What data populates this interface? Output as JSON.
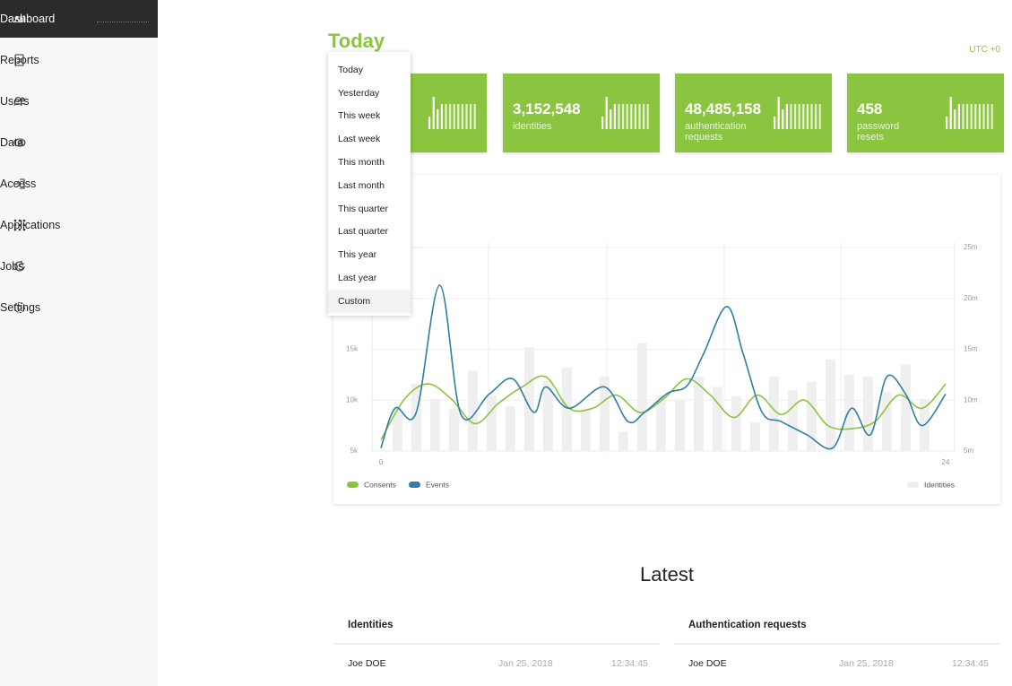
{
  "sidebar": {
    "items": [
      {
        "label": "Dashboard",
        "active": true
      },
      {
        "label": "Reports"
      },
      {
        "label": "Users"
      },
      {
        "label": "Data"
      },
      {
        "label": "Access"
      },
      {
        "label": "Applications"
      },
      {
        "label": "Jobs"
      },
      {
        "label": "Settings"
      }
    ]
  },
  "header": {
    "title": "Today",
    "timezone": "UTC +0"
  },
  "range_menu": {
    "options": [
      {
        "label": "Today"
      },
      {
        "label": "Yesterday"
      },
      {
        "label": "This week"
      },
      {
        "label": "Last week"
      },
      {
        "label": "This month"
      },
      {
        "label": "Last month"
      },
      {
        "label": "This quarter"
      },
      {
        "label": "Last quarter"
      },
      {
        "label": "This year"
      },
      {
        "label": "Last year"
      },
      {
        "label": "Custom",
        "hover": true
      }
    ]
  },
  "stats": [
    {
      "value": "3,152,548",
      "label": "identities"
    },
    {
      "value": "48,485,158",
      "label": "authentication requests"
    },
    {
      "value": "458",
      "label": "password resets"
    }
  ],
  "chart_data": {
    "type": "line",
    "xlim": [
      0,
      24
    ],
    "xticks": [
      0,
      24
    ],
    "ylim": [
      5000,
      25000
    ],
    "yticks": [
      {
        "value": 5000,
        "label": "5k"
      },
      {
        "value": 10000,
        "label": "10k"
      },
      {
        "value": 15000,
        "label": "15k"
      }
    ],
    "y2lim": [
      5000000,
      25000000
    ],
    "y2ticks": [
      {
        "value": 5000000,
        "label": "5m"
      },
      {
        "value": 10000000,
        "label": "10m"
      },
      {
        "value": 15000000,
        "label": "15m"
      },
      {
        "value": 20000000,
        "label": "20m"
      },
      {
        "value": 25000000,
        "label": "25m"
      }
    ],
    "grid": true,
    "series": [
      {
        "name": "Consents",
        "color": "#8cc43f",
        "x": [
          0,
          1,
          2,
          3,
          4,
          5,
          6,
          7,
          8,
          9,
          10,
          11,
          12,
          13,
          14,
          15,
          16,
          17,
          18,
          19,
          20,
          21,
          22,
          23,
          24
        ],
        "values": [
          6100,
          10100,
          11600,
          10100,
          7700,
          9700,
          11300,
          12300,
          9200,
          9200,
          10500,
          8800,
          10100,
          12100,
          10500,
          8300,
          10500,
          8600,
          10000,
          7500,
          7200,
          7900,
          10500,
          9200,
          11600
        ]
      },
      {
        "name": "Events",
        "color": "#2f7ea3",
        "x": [
          0,
          0.6,
          1.5,
          2.5,
          3.4,
          4.6,
          5.6,
          6.5,
          7,
          8,
          9.5,
          10.5,
          11.2,
          12.2,
          13,
          13.7,
          14.7,
          15.4,
          16.2,
          17,
          18.1,
          19.2,
          20,
          20.8,
          21.5,
          22.3,
          23,
          24
        ],
        "values": [
          5300,
          9200,
          8800,
          21300,
          8600,
          10600,
          12100,
          8800,
          11300,
          9200,
          11300,
          7900,
          8800,
          10700,
          11400,
          14500,
          19200,
          14500,
          8800,
          7900,
          6600,
          5300,
          9200,
          6600,
          12300,
          10600,
          7500,
          10600
        ]
      },
      {
        "name": "Identities",
        "color": "#efefef",
        "type": "bar",
        "axis": "y2",
        "x": [
          0.7,
          1.5,
          2.3,
          3.1,
          3.9,
          4.7,
          5.5,
          6.3,
          7.1,
          7.9,
          8.7,
          9.5,
          10.3,
          11.1,
          11.9,
          12.7,
          13.5,
          14.3,
          15.1,
          15.9,
          16.7,
          17.5,
          18.3,
          19.1,
          19.9,
          20.7,
          21.5,
          22.3,
          23.1
        ],
        "values": [
          9200000,
          11600000,
          10100000,
          9200000,
          12900000,
          10500000,
          9400000,
          15200000,
          11900000,
          13200000,
          9200000,
          12300000,
          6900000,
          15600000,
          10500000,
          10000000,
          12300000,
          11300000,
          10400000,
          7800000,
          12300000,
          11000000,
          11800000,
          14000000,
          12500000,
          12300000,
          10800000,
          13500000,
          10100000
        ]
      }
    ]
  },
  "latest": {
    "title": "Latest",
    "tables": [
      {
        "title": "Identities",
        "rows": [
          [
            "Joe DOE",
            "Jan 25, 2018",
            "12:34:45"
          ]
        ]
      },
      {
        "title": "Authentication requests",
        "rows": [
          [
            "Joe DOE",
            "Jan 25, 2018",
            "12:34:45"
          ]
        ]
      }
    ]
  }
}
